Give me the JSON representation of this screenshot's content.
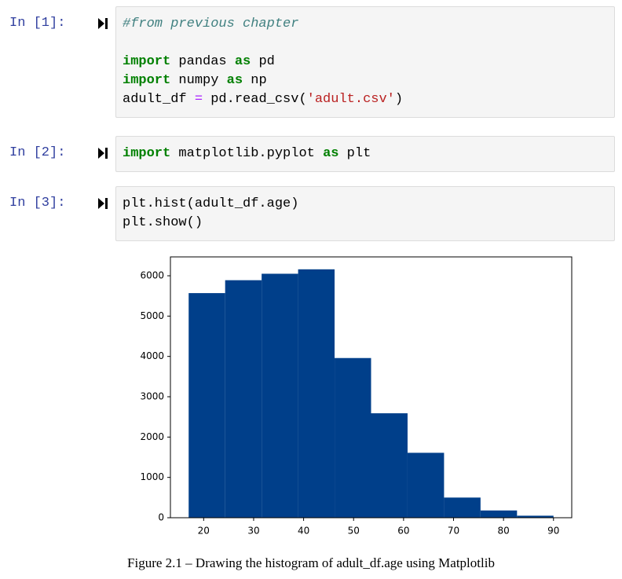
{
  "cells": [
    {
      "prompt": "In [1]:",
      "lines": [
        [
          {
            "text": "#from previous chapter",
            "style": "comment"
          }
        ],
        [],
        [
          {
            "text": "import",
            "style": "keyword"
          },
          {
            "text": " pandas "
          },
          {
            "text": "as",
            "style": "keyword"
          },
          {
            "text": " pd"
          }
        ],
        [
          {
            "text": "import",
            "style": "keyword"
          },
          {
            "text": " numpy "
          },
          {
            "text": "as",
            "style": "keyword"
          },
          {
            "text": " np"
          }
        ],
        [
          {
            "text": "adult_df "
          },
          {
            "text": "=",
            "style": "operator"
          },
          {
            "text": " pd.read_csv("
          },
          {
            "text": "'adult.csv'",
            "style": "string"
          },
          {
            "text": ")"
          }
        ]
      ]
    },
    {
      "prompt": "In [2]:",
      "lines": [
        [
          {
            "text": "import",
            "style": "keyword"
          },
          {
            "text": " matplotlib.pyplot "
          },
          {
            "text": "as",
            "style": "keyword"
          },
          {
            "text": " plt"
          }
        ]
      ]
    },
    {
      "prompt": "In [3]:",
      "lines": [
        [
          {
            "text": "plt.hist(adult_df.age)"
          }
        ],
        [
          {
            "text": "plt.show()"
          }
        ]
      ]
    }
  ],
  "chart_data": {
    "type": "histogram",
    "color": "#003f8a",
    "bins": [
      17,
      24.3,
      31.6,
      38.9,
      46.2,
      53.5,
      60.8,
      68.1,
      75.4,
      82.7,
      90
    ],
    "values": [
      5570,
      5890,
      6050,
      6160,
      3960,
      2590,
      1610,
      500,
      180,
      50
    ],
    "xlim": [
      13.35,
      93.65
    ],
    "xticks": [
      20,
      30,
      40,
      50,
      60,
      70,
      80,
      90
    ],
    "ylim": [
      0,
      6468
    ],
    "yticks": [
      0,
      1000,
      2000,
      3000,
      4000,
      5000,
      6000
    ]
  },
  "caption": "Figure 2.1 – Drawing the histogram of adult_df.age using Matplotlib"
}
